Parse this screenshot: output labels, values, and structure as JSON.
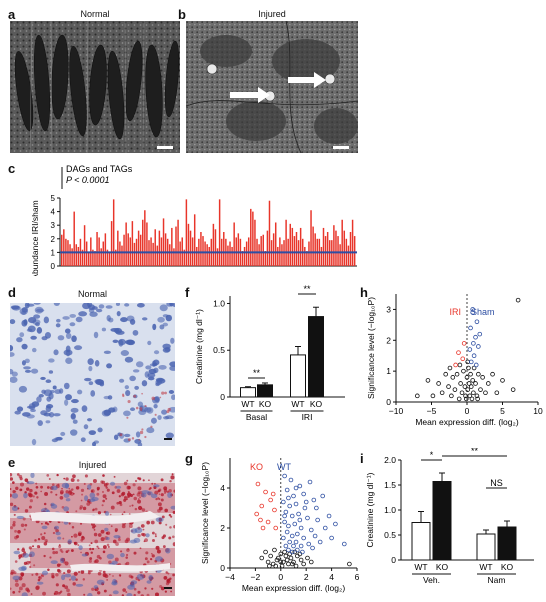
{
  "panels": {
    "a": {
      "label": "a",
      "title": "Normal"
    },
    "b": {
      "label": "b",
      "title": "Injured"
    },
    "c": {
      "label": "c"
    },
    "d": {
      "label": "d",
      "title": "Normal"
    },
    "e": {
      "label": "e",
      "title": "Injured"
    },
    "f": {
      "label": "f"
    },
    "g": {
      "label": "g"
    },
    "h": {
      "label": "h"
    },
    "i": {
      "label": "i"
    }
  },
  "colors": {
    "red": "#e8352a",
    "blue": "#2d4ea2",
    "black": "#111111"
  },
  "chart_data": [
    {
      "panel": "c",
      "type": "bar",
      "ylabel": "Abundance IRI/sham",
      "legend": [
        "DAGs and TAGs",
        "P < 0.0001"
      ],
      "yticks": [
        "0",
        "1",
        "2",
        "3",
        "4",
        "5"
      ],
      "ylim": [
        0,
        5.5
      ],
      "reference_line": 1,
      "values": [
        2.3,
        2.7,
        2.0,
        1.9,
        1.6,
        1.3,
        4.0,
        1.6,
        1.4,
        2.0,
        1.2,
        3.0,
        1.8,
        1.0,
        2.1,
        1.2,
        1.1,
        2.5,
        2.1,
        1.3,
        1.8,
        2.4,
        1.2,
        1.0,
        3.3,
        4.9,
        1.2,
        2.6,
        1.8,
        1.5,
        2.3,
        3.2,
        2.4,
        2.1,
        3.3,
        1.7,
        2.0,
        2.6,
        2.3,
        3.4,
        4.1,
        3.2,
        1.9,
        2.1,
        1.7,
        2.7,
        1.5,
        2.6,
        2.1,
        3.5,
        2.4,
        2.0,
        1.6,
        2.8,
        1.3,
        2.9,
        3.4,
        1.8,
        2.1,
        1.2,
        4.9,
        3.1,
        2.6,
        2.1,
        3.8,
        1.4,
        2.0,
        2.5,
        2.2,
        1.8,
        1.6,
        1.4,
        2.0,
        3.1,
        2.7,
        1.3,
        4.9,
        2.0,
        2.5,
        2.0,
        1.5,
        1.8,
        1.4,
        3.2,
        2.1,
        2.4,
        2.0,
        1.1,
        1.4,
        1.8,
        2.1,
        4.2,
        4.0,
        3.4,
        2.0,
        1.6,
        2.2,
        2.3,
        1.1,
        2.6,
        4.8,
        1.9,
        2.4,
        3.2,
        1.4,
        2.1,
        1.6,
        1.9,
        3.4,
        2.0,
        3.1,
        2.8,
        2.2,
        2.5,
        1.9,
        2.8,
        2.0,
        1.4,
        1.1,
        1.8,
        4.1,
        2.9,
        2.4,
        2.0,
        2.0,
        1.4,
        2.8,
        2.2,
        2.5,
        1.9,
        1.9,
        3.0,
        2.6,
        2.2,
        1.6,
        3.4,
        2.6,
        2.0,
        1.5,
        2.5,
        3.4,
        2.2
      ]
    },
    {
      "panel": "f",
      "type": "bar",
      "ylabel": "Creatinine (mg dl⁻¹)",
      "yticks": [
        "0",
        "0.5",
        "1.0"
      ],
      "ylim": [
        0,
        1.0
      ],
      "categories": [
        "WT",
        "KO",
        "WT",
        "KO"
      ],
      "groups": [
        "Basal",
        "IRI"
      ],
      "values": [
        0.1,
        0.13,
        0.45,
        0.86
      ],
      "errors": [
        0.01,
        0.02,
        0.09,
        0.1
      ],
      "fills": [
        "white",
        "black",
        "white",
        "black"
      ],
      "significance": [
        "**",
        "**"
      ]
    },
    {
      "panel": "g",
      "type": "scatter",
      "xlabel": "Mean expression diff. (log₂)",
      "ylabel": "Significance level (−log₁₀P)",
      "xticks": [
        "−4",
        "−2",
        "0",
        "2",
        "4",
        "6"
      ],
      "yticks": [
        "0",
        "2",
        "4"
      ],
      "xlim": [
        -4,
        6
      ],
      "ylim": [
        0,
        5.5
      ],
      "series_labels": [
        "KO",
        "WT"
      ],
      "points_red": [
        [
          -1.8,
          4.2
        ],
        [
          -1.2,
          3.8
        ],
        [
          -1.5,
          3.1
        ],
        [
          -0.8,
          3.4
        ],
        [
          -1.9,
          2.7
        ],
        [
          -1.0,
          2.3
        ],
        [
          -0.5,
          2.9
        ],
        [
          -1.4,
          2.0
        ],
        [
          -0.4,
          2.0
        ],
        [
          -1.6,
          2.4
        ],
        [
          -0.6,
          3.7
        ]
      ],
      "points_blue": [
        [
          0.3,
          4.6
        ],
        [
          0.8,
          4.4
        ],
        [
          1.5,
          4.1
        ],
        [
          2.3,
          4.3
        ],
        [
          0.5,
          3.9
        ],
        [
          1.0,
          3.6
        ],
        [
          1.8,
          3.7
        ],
        [
          2.6,
          3.4
        ],
        [
          0.2,
          3.3
        ],
        [
          0.7,
          3.1
        ],
        [
          1.2,
          3.2
        ],
        [
          1.9,
          3.0
        ],
        [
          2.8,
          3.0
        ],
        [
          3.3,
          3.6
        ],
        [
          0.4,
          2.8
        ],
        [
          0.9,
          2.6
        ],
        [
          1.4,
          2.7
        ],
        [
          2.1,
          2.5
        ],
        [
          2.9,
          2.4
        ],
        [
          3.8,
          2.6
        ],
        [
          0.3,
          2.3
        ],
        [
          0.6,
          2.1
        ],
        [
          1.1,
          2.2
        ],
        [
          1.6,
          2.0
        ],
        [
          2.4,
          1.9
        ],
        [
          3.5,
          2.0
        ],
        [
          4.3,
          2.2
        ],
        [
          0.5,
          1.8
        ],
        [
          0.9,
          1.6
        ],
        [
          1.3,
          1.7
        ],
        [
          1.8,
          1.5
        ],
        [
          2.7,
          1.6
        ],
        [
          0.2,
          1.5
        ],
        [
          0.7,
          1.3
        ],
        [
          1.2,
          1.3
        ],
        [
          3.1,
          1.3
        ],
        [
          4.0,
          1.5
        ],
        [
          0.4,
          1.1
        ],
        [
          1.0,
          1.1
        ],
        [
          1.6,
          1.1
        ],
        [
          2.2,
          1.2
        ],
        [
          0.6,
          0.9
        ],
        [
          1.3,
          0.9
        ],
        [
          5.0,
          1.2
        ],
        [
          0.9,
          0.8
        ],
        [
          1.7,
          0.8
        ],
        [
          2.5,
          1.0
        ],
        [
          0.3,
          2.6
        ],
        [
          1.5,
          2.4
        ],
        [
          2.0,
          3.3
        ],
        [
          1.2,
          4.0
        ],
        [
          0.6,
          3.5
        ]
      ],
      "points_black": [
        [
          -1.2,
          0.8
        ],
        [
          -0.8,
          0.6
        ],
        [
          -0.5,
          0.9
        ],
        [
          -0.3,
          0.4
        ],
        [
          0.0,
          0.7
        ],
        [
          0.2,
          0.3
        ],
        [
          0.4,
          0.6
        ],
        [
          0.6,
          0.2
        ],
        [
          0.8,
          0.5
        ],
        [
          1.0,
          0.3
        ],
        [
          1.3,
          0.6
        ],
        [
          1.6,
          0.4
        ],
        [
          -1.0,
          0.3
        ],
        [
          -0.6,
          0.2
        ],
        [
          -0.2,
          0.5
        ],
        [
          0.1,
          0.1
        ],
        [
          0.5,
          0.4
        ],
        [
          0.9,
          0.2
        ],
        [
          1.2,
          0.1
        ],
        [
          1.8,
          0.2
        ],
        [
          2.1,
          0.5
        ],
        [
          -1.5,
          0.5
        ],
        [
          -0.4,
          0.1
        ],
        [
          0.3,
          0.8
        ],
        [
          0.7,
          0.7
        ],
        [
          1.1,
          0.8
        ],
        [
          1.5,
          0.7
        ],
        [
          2.4,
          0.3
        ],
        [
          -0.9,
          0.1
        ],
        [
          0.0,
          0.3
        ],
        [
          5.4,
          0.2
        ]
      ]
    },
    {
      "panel": "h",
      "type": "scatter",
      "xlabel": "Mean expression diff. (log₂)",
      "ylabel": "Significance level (−log₁₀P)",
      "xticks": [
        "−10",
        "−5",
        "0",
        "5",
        "10"
      ],
      "yticks": [
        "0",
        "1",
        "2",
        "3"
      ],
      "xlim": [
        -10,
        10
      ],
      "ylim": [
        0,
        3.5
      ],
      "series_labels": [
        "IRI",
        "Sham"
      ],
      "points_red": [
        [
          -1.2,
          1.6
        ],
        [
          -0.6,
          1.4
        ],
        [
          -1.6,
          1.2
        ],
        [
          -0.4,
          1.9
        ]
      ],
      "points_blue": [
        [
          0.8,
          3.0
        ],
        [
          1.4,
          2.6
        ],
        [
          0.5,
          2.4
        ],
        [
          1.2,
          2.1
        ],
        [
          0.9,
          1.9
        ],
        [
          1.6,
          1.8
        ],
        [
          0.4,
          1.7
        ],
        [
          1.0,
          1.5
        ],
        [
          0.6,
          1.3
        ],
        [
          1.3,
          1.2
        ],
        [
          0.8,
          2.9
        ],
        [
          1.8,
          2.2
        ]
      ],
      "points_black": [
        [
          -7.0,
          0.2
        ],
        [
          -5.5,
          0.7
        ],
        [
          -4.8,
          0.2
        ],
        [
          -4.0,
          0.6
        ],
        [
          -3.5,
          0.3
        ],
        [
          -3.0,
          0.9
        ],
        [
          -2.6,
          0.5
        ],
        [
          -2.2,
          0.2
        ],
        [
          -2.0,
          0.8
        ],
        [
          -1.7,
          0.4
        ],
        [
          -1.4,
          0.9
        ],
        [
          -1.1,
          0.1
        ],
        [
          -0.9,
          0.6
        ],
        [
          -0.7,
          0.3
        ],
        [
          -0.5,
          1.0
        ],
        [
          -0.3,
          0.5
        ],
        [
          -0.2,
          0.2
        ],
        [
          0.0,
          0.8
        ],
        [
          0.1,
          0.4
        ],
        [
          0.2,
          1.1
        ],
        [
          0.3,
          0.6
        ],
        [
          0.4,
          0.2
        ],
        [
          0.5,
          0.9
        ],
        [
          0.6,
          0.5
        ],
        [
          0.7,
          0.1
        ],
        [
          0.8,
          0.7
        ],
        [
          0.9,
          0.3
        ],
        [
          1.0,
          1.1
        ],
        [
          1.2,
          0.6
        ],
        [
          1.4,
          0.2
        ],
        [
          1.6,
          0.9
        ],
        [
          1.9,
          0.4
        ],
        [
          2.2,
          0.8
        ],
        [
          2.6,
          0.3
        ],
        [
          3.0,
          0.6
        ],
        [
          3.6,
          0.9
        ],
        [
          4.2,
          0.3
        ],
        [
          5.0,
          0.7
        ],
        [
          6.5,
          0.4
        ],
        [
          7.2,
          3.3
        ],
        [
          -2.4,
          1.1
        ],
        [
          -1.0,
          1.2
        ],
        [
          0.1,
          1.3
        ],
        [
          1.5,
          0.1
        ],
        [
          -0.1,
          0.1
        ]
      ]
    },
    {
      "panel": "i",
      "type": "bar",
      "ylabel": "Creatinine (mg dl⁻¹)",
      "yticks": [
        "0",
        "0.5",
        "1.0",
        "1.5",
        "2.0"
      ],
      "ylim": [
        0,
        2.0
      ],
      "categories": [
        "WT",
        "KO",
        "WT",
        "KO"
      ],
      "groups": [
        "Veh.",
        "Nam"
      ],
      "values": [
        0.75,
        1.57,
        0.52,
        0.66
      ],
      "errors": [
        0.22,
        0.17,
        0.08,
        0.12
      ],
      "fills": [
        "white",
        "black",
        "white",
        "black"
      ],
      "significance": [
        "*",
        "**",
        "NS"
      ]
    }
  ]
}
